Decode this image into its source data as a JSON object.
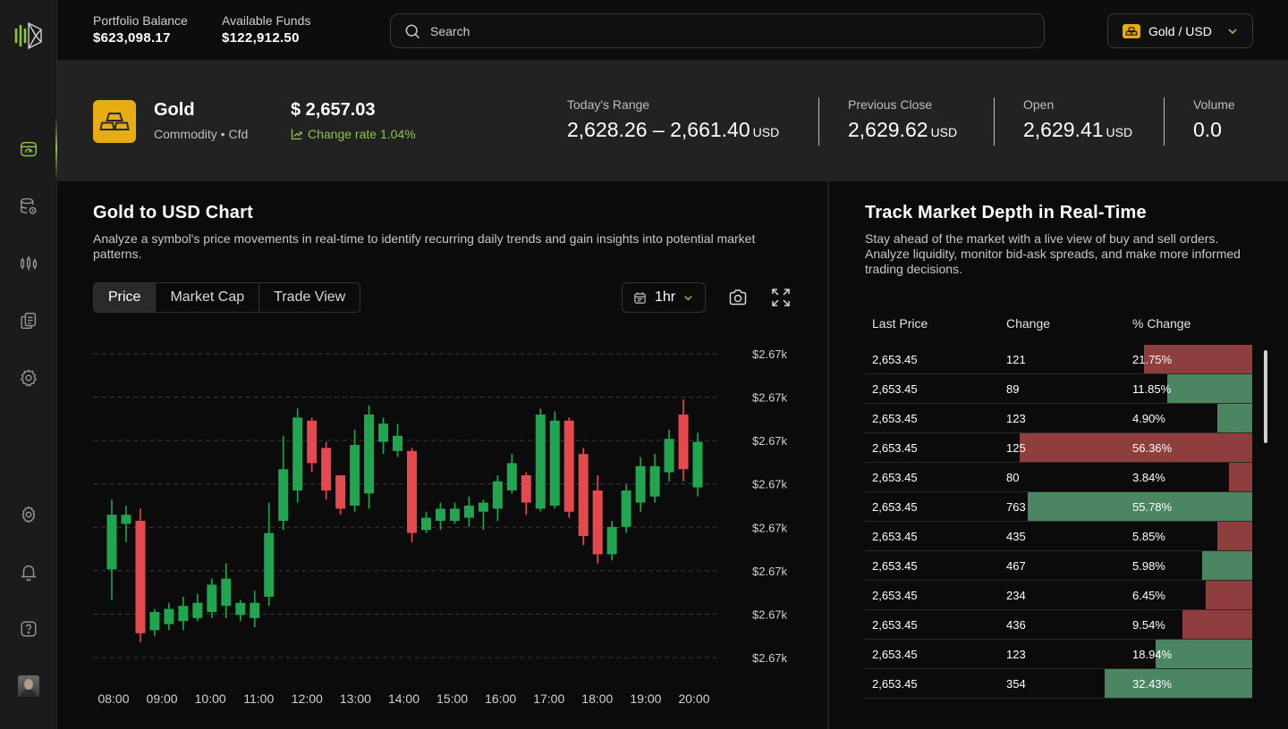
{
  "header": {
    "portfolio_label": "Portfolio Balance",
    "portfolio_value": "$623,098.17",
    "funds_label": "Available Funds",
    "funds_value": "$122,912.50",
    "search_placeholder": "Search",
    "pair": "Gold / USD"
  },
  "sidebar": {
    "items": [
      "market-icon",
      "database-icon",
      "candles-icon",
      "documents-icon",
      "settings-cog-icon",
      "gear-icon",
      "bell-icon",
      "help-icon"
    ]
  },
  "asset": {
    "name": "Gold",
    "subtitle": "Commodity • Cfd",
    "price": "$ 2,657.03",
    "change": "Change rate 1.04%",
    "range_label": "Today's Range",
    "range_value": "2,628.26 – 2,661.40",
    "prev_close_label": "Previous Close",
    "prev_close_value": "2,629.62",
    "open_label": "Open",
    "open_value": "2,629.41",
    "volume_label": "Volume",
    "volume_value": "0.0",
    "unit": "USD"
  },
  "chart": {
    "title": "Gold to USD Chart",
    "description": "Analyze a symbol's price movements in real-time to identify recurring daily trends and gain insights into potential market patterns.",
    "tabs": [
      "Price",
      "Market Cap",
      "Trade View"
    ],
    "active_tab": "Price",
    "interval": "1hr"
  },
  "chart_data": {
    "type": "candlestick",
    "x": [
      "08:00",
      "09:00",
      "10:00",
      "11:00",
      "12:00",
      "13:00",
      "14:00",
      "15:00",
      "16:00",
      "17:00",
      "18:00",
      "19:00",
      "20:00"
    ],
    "y_tick_labels": [
      "$2.67k",
      "$2.67k",
      "$2.67k",
      "$2.67k",
      "$2.67k",
      "$2.67k",
      "$2.67k",
      "$2.67k"
    ],
    "ylim": [
      0,
      100
    ],
    "grid": true,
    "colors": {
      "up": "#1fa64e",
      "down": "#e5484d"
    },
    "candles": [
      {
        "o": 29,
        "c": 47,
        "h": 52,
        "l": 19
      },
      {
        "o": 44,
        "c": 47,
        "h": 50,
        "l": 38
      },
      {
        "o": 45,
        "c": 8,
        "h": 49,
        "l": 5
      },
      {
        "o": 9,
        "c": 15,
        "h": 16,
        "l": 7
      },
      {
        "o": 11,
        "c": 16,
        "h": 18,
        "l": 9
      },
      {
        "o": 12,
        "c": 17,
        "h": 20,
        "l": 9
      },
      {
        "o": 13,
        "c": 18,
        "h": 21,
        "l": 12
      },
      {
        "o": 15,
        "c": 24,
        "h": 26,
        "l": 13
      },
      {
        "o": 17,
        "c": 26,
        "h": 31,
        "l": 13
      },
      {
        "o": 14,
        "c": 18,
        "h": 19,
        "l": 12
      },
      {
        "o": 13,
        "c": 18,
        "h": 22,
        "l": 10
      },
      {
        "o": 20,
        "c": 41,
        "h": 51,
        "l": 17
      },
      {
        "o": 45,
        "c": 62,
        "h": 73,
        "l": 42
      },
      {
        "o": 55,
        "c": 79,
        "h": 82,
        "l": 51
      },
      {
        "o": 78,
        "c": 64,
        "h": 79,
        "l": 61
      },
      {
        "o": 69,
        "c": 55,
        "h": 71,
        "l": 52
      },
      {
        "o": 60,
        "c": 49,
        "h": 60,
        "l": 47
      },
      {
        "o": 50,
        "c": 70,
        "h": 75,
        "l": 48
      },
      {
        "o": 54,
        "c": 80,
        "h": 83,
        "l": 49
      },
      {
        "o": 71,
        "c": 77,
        "h": 79,
        "l": 67
      },
      {
        "o": 68,
        "c": 73,
        "h": 77,
        "l": 66
      },
      {
        "o": 68,
        "c": 41,
        "h": 69,
        "l": 38
      },
      {
        "o": 42,
        "c": 46,
        "h": 48,
        "l": 41
      },
      {
        "o": 45,
        "c": 49,
        "h": 51,
        "l": 42
      },
      {
        "o": 45,
        "c": 49,
        "h": 51,
        "l": 44
      },
      {
        "o": 46,
        "c": 50,
        "h": 53,
        "l": 43
      },
      {
        "o": 48,
        "c": 51,
        "h": 52,
        "l": 42
      },
      {
        "o": 49,
        "c": 58,
        "h": 60,
        "l": 45
      },
      {
        "o": 55,
        "c": 64,
        "h": 67,
        "l": 54
      },
      {
        "o": 60,
        "c": 51,
        "h": 61,
        "l": 47
      },
      {
        "o": 49,
        "c": 80,
        "h": 82,
        "l": 48
      },
      {
        "o": 50,
        "c": 78,
        "h": 81,
        "l": 49
      },
      {
        "o": 78,
        "c": 48,
        "h": 79,
        "l": 46
      },
      {
        "o": 67,
        "c": 40,
        "h": 69,
        "l": 37
      },
      {
        "o": 55,
        "c": 34,
        "h": 60,
        "l": 31
      },
      {
        "o": 34,
        "c": 43,
        "h": 45,
        "l": 32
      },
      {
        "o": 43,
        "c": 55,
        "h": 57,
        "l": 41
      },
      {
        "o": 51,
        "c": 63,
        "h": 66,
        "l": 48
      },
      {
        "o": 53,
        "c": 63,
        "h": 67,
        "l": 51
      },
      {
        "o": 61,
        "c": 72,
        "h": 75,
        "l": 58
      },
      {
        "o": 80,
        "c": 62,
        "h": 85,
        "l": 58
      },
      {
        "o": 56,
        "c": 71,
        "h": 74,
        "l": 53
      }
    ]
  },
  "depth": {
    "title": "Track Market Depth in Real-Time",
    "description": "Stay ahead of the market with a live view of buy and sell orders. Analyze liquidity, monitor bid-ask spreads, and make more informed trading decisions.",
    "columns": [
      "Last Price",
      "Change",
      "% Change"
    ],
    "colors": {
      "sell": "#8f3d3d",
      "buy": "#4b8562"
    },
    "rows": [
      {
        "price": "2,653.45",
        "change": "121",
        "pct": "21.75%",
        "side": "sell",
        "fill": 0.28
      },
      {
        "price": "2,653.45",
        "change": "89",
        "pct": "11.85%",
        "side": "buy",
        "fill": 0.22
      },
      {
        "price": "2,653.45",
        "change": "123",
        "pct": "4.90%",
        "side": "buy",
        "fill": 0.09
      },
      {
        "price": "2,653.45",
        "change": "125",
        "pct": "56.36%",
        "side": "sell",
        "fill": 0.6
      },
      {
        "price": "2,653.45",
        "change": "80",
        "pct": "3.84%",
        "side": "sell",
        "fill": 0.06
      },
      {
        "price": "2,653.45",
        "change": "763",
        "pct": "55.78%",
        "side": "buy",
        "fill": 0.58
      },
      {
        "price": "2,653.45",
        "change": "435",
        "pct": "5.85%",
        "side": "sell",
        "fill": 0.09
      },
      {
        "price": "2,653.45",
        "change": "467",
        "pct": "5.98%",
        "side": "buy",
        "fill": 0.13
      },
      {
        "price": "2,653.45",
        "change": "234",
        "pct": "6.45%",
        "side": "sell",
        "fill": 0.12
      },
      {
        "price": "2,653.45",
        "change": "436",
        "pct": "9.54%",
        "side": "sell",
        "fill": 0.18
      },
      {
        "price": "2,653.45",
        "change": "123",
        "pct": "18.94%",
        "side": "buy",
        "fill": 0.25
      },
      {
        "price": "2,653.45",
        "change": "354",
        "pct": "32.43%",
        "side": "buy",
        "fill": 0.38
      }
    ]
  }
}
